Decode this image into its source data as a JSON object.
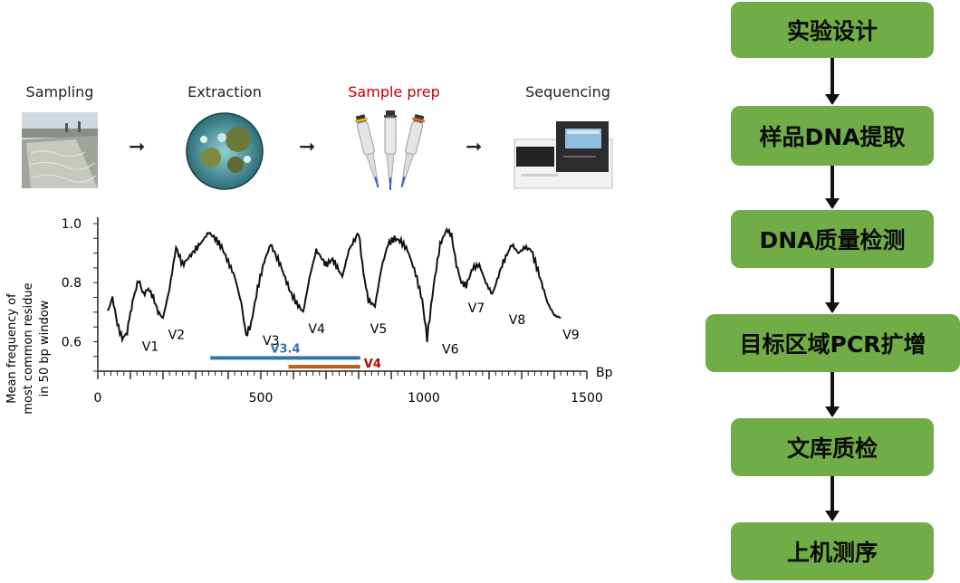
{
  "workflow": {
    "steps": [
      {
        "label": "Sampling",
        "color": "#222222"
      },
      {
        "label": "Extraction",
        "color": "#222222"
      },
      {
        "label": "Sample prep",
        "color": "#c00000"
      },
      {
        "label": "Sequencing",
        "color": "#222222"
      }
    ],
    "arrow_glyph": "➞"
  },
  "flowchart": {
    "boxes": [
      "实验设计",
      "样品DNA提取",
      "DNA质量检测",
      "目标区域PCR扩增",
      "文库质检",
      "上机测序"
    ],
    "box_color": "#70ad47"
  },
  "chart_data": {
    "type": "line",
    "ylabel_lines": [
      "Mean frequency of",
      "most common residue",
      "in 50 bp window"
    ],
    "xlabel": "Bp",
    "xlim": [
      0,
      1500
    ],
    "ylim": [
      0.5,
      1.0
    ],
    "xticks": [
      0,
      500,
      1000,
      1500
    ],
    "yticks": [
      0.6,
      0.8,
      1.0
    ],
    "ytick_labels": [
      "0.6",
      "0.8",
      "1.0"
    ],
    "x": [
      30,
      45,
      60,
      75,
      90,
      100,
      110,
      125,
      140,
      155,
      170,
      185,
      200,
      220,
      240,
      260,
      290,
      320,
      340,
      360,
      380,
      400,
      420,
      440,
      455,
      470,
      490,
      510,
      530,
      560,
      590,
      610,
      630,
      650,
      670,
      700,
      720,
      750,
      770,
      800,
      815,
      830,
      850,
      870,
      890,
      910,
      930,
      950,
      975,
      995,
      1010,
      1030,
      1050,
      1070,
      1085,
      1100,
      1115,
      1130,
      1150,
      1170,
      1190,
      1210,
      1240,
      1270,
      1290,
      1310,
      1330,
      1350,
      1380,
      1400,
      1420
    ],
    "y": [
      0.7,
      0.75,
      0.66,
      0.61,
      0.63,
      0.7,
      0.75,
      0.81,
      0.76,
      0.78,
      0.75,
      0.7,
      0.68,
      0.78,
      0.92,
      0.86,
      0.9,
      0.94,
      0.97,
      0.95,
      0.92,
      0.87,
      0.82,
      0.73,
      0.62,
      0.66,
      0.78,
      0.87,
      0.93,
      0.86,
      0.77,
      0.73,
      0.7,
      0.82,
      0.91,
      0.86,
      0.88,
      0.82,
      0.91,
      0.97,
      0.83,
      0.74,
      0.72,
      0.85,
      0.93,
      0.95,
      0.94,
      0.91,
      0.83,
      0.74,
      0.61,
      0.79,
      0.93,
      0.98,
      0.96,
      0.86,
      0.8,
      0.79,
      0.85,
      0.86,
      0.8,
      0.76,
      0.86,
      0.93,
      0.9,
      0.92,
      0.91,
      0.84,
      0.73,
      0.69,
      0.68
    ],
    "region_labels": [
      {
        "text": "V1",
        "x": 130,
        "y": 0.6
      },
      {
        "text": "V2",
        "x": 210,
        "y": 0.64
      },
      {
        "text": "V3",
        "x": 500,
        "y": 0.62
      },
      {
        "text": "V4",
        "x": 640,
        "y": 0.66
      },
      {
        "text": "V5",
        "x": 830,
        "y": 0.66
      },
      {
        "text": "V6",
        "x": 1050,
        "y": 0.59
      },
      {
        "text": "V7",
        "x": 1130,
        "y": 0.73
      },
      {
        "text": "V8",
        "x": 1255,
        "y": 0.69
      },
      {
        "text": "V9",
        "x": 1420,
        "y": 0.64
      }
    ],
    "amplicons": [
      {
        "label": "V3.4",
        "start": 345,
        "end": 805,
        "y": 0.545,
        "color": "#2e75b6"
      },
      {
        "label": "V4",
        "start": 585,
        "end": 805,
        "y": 0.515,
        "color": "#c55a11",
        "label_color": "#c00000"
      }
    ]
  }
}
